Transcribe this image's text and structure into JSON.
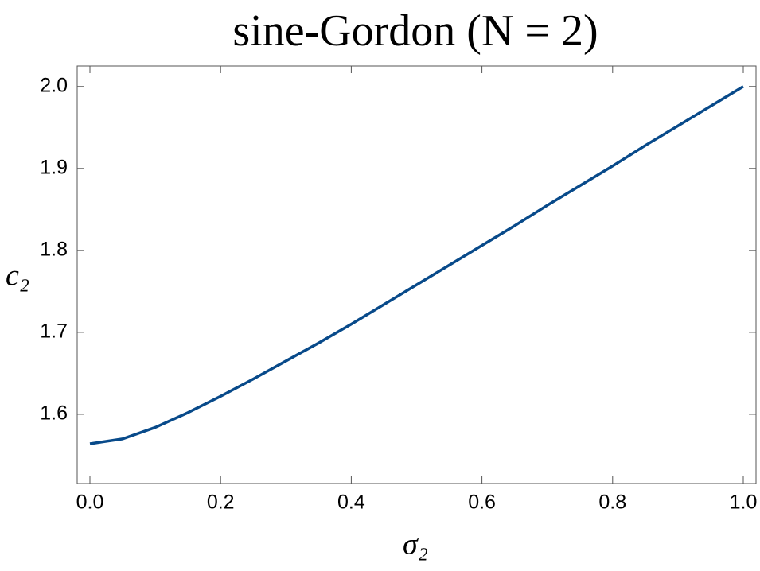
{
  "chart_data": {
    "type": "line",
    "title": "sine-Gordon (N = 2)",
    "xlabel": "σ₂",
    "ylabel": "c₂",
    "x": [
      0,
      0.05,
      0.1,
      0.15,
      0.2,
      0.25,
      0.3,
      0.35,
      0.4,
      0.45,
      0.5,
      0.55,
      0.6,
      0.65,
      0.7,
      0.75,
      0.8,
      0.85,
      0.9,
      0.95,
      1.0
    ],
    "series": [
      {
        "color": "#084a8a",
        "values": [
          1.564,
          1.57,
          1.584,
          1.602,
          1.622,
          1.643,
          1.665,
          1.687,
          1.71,
          1.734,
          1.758,
          1.782,
          1.806,
          1.83,
          1.855,
          1.879,
          1.903,
          1.928,
          1.952,
          1.976,
          2.0
        ]
      }
    ],
    "xlim": [
      -0.0195,
      1.0195
    ],
    "ylim": [
      1.5155,
      2.025
    ],
    "xticks": [
      {
        "value": 0,
        "label": "0.0"
      },
      0.2,
      0.4,
      0.6,
      0.8,
      {
        "value": 1,
        "label": "1.0"
      }
    ],
    "yticks": [
      1.6,
      1.7,
      1.8,
      1.9,
      {
        "value": 2,
        "label": "2.0"
      }
    ],
    "grid": false
  }
}
